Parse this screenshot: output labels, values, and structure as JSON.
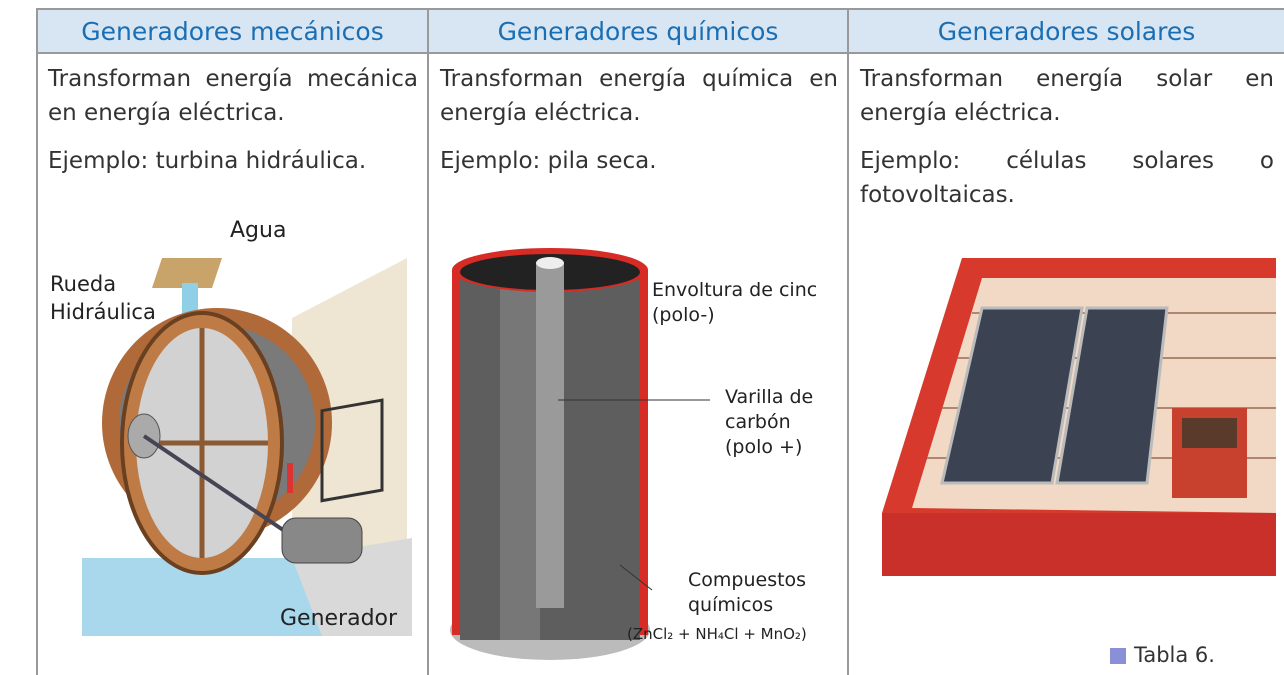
{
  "table": {
    "headers": [
      "Generadores mecánicos",
      "Generadores químicos",
      "Generadores solares"
    ],
    "columns": [
      {
        "description": "Transforman energía mecánica en energía eléctrica.",
        "example": "Ejemplo: turbina hidráulica.",
        "labels": [
          "Agua",
          "Rueda Hidráulica",
          "Generador"
        ]
      },
      {
        "description": "Transforman energía química en energía eléctrica.",
        "example": "Ejemplo: pila seca.",
        "labels": [
          "Envoltura de cinc (polo-)",
          "Varilla de carbón (polo +)",
          "Compuestos químicos",
          "(ZnCl₂ + NH₄Cl + MnO₂)"
        ]
      },
      {
        "description": "Transforman energía solar en energía eléctrica.",
        "example": "Ejemplo: células solares o fotovoltaicas.",
        "labels": []
      }
    ]
  },
  "caption": "Tabla 6."
}
